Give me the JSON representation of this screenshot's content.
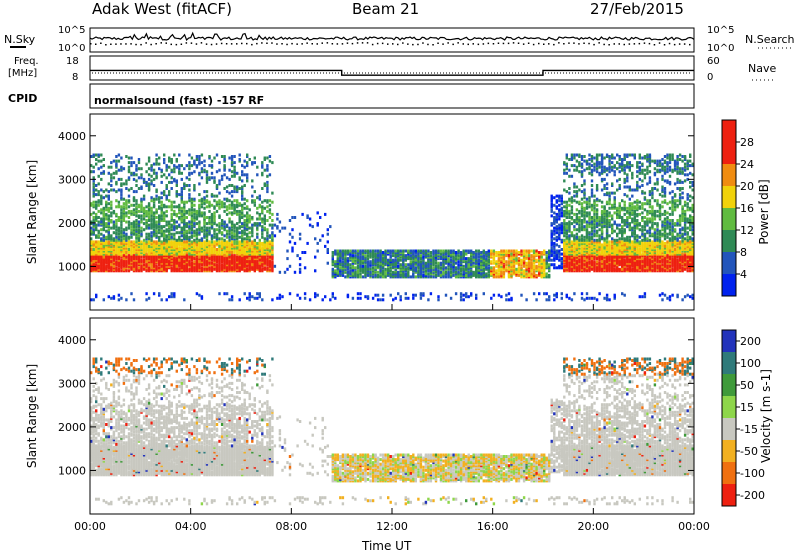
{
  "header": {
    "title": "Adak West (fitACF)",
    "beam": "Beam 21",
    "date": "27/Feb/2015"
  },
  "chart_data": [
    {
      "type": "line",
      "panel": "noise",
      "left_label": "N.Sky",
      "right_label": "N.Search",
      "left_ticks": [
        "10^5",
        "10^0"
      ],
      "right_ticks": [
        "10^5",
        "10^0"
      ]
    },
    {
      "type": "line",
      "panel": "frequency",
      "left_label_top": "Freq.",
      "left_label_unit": "[MHz]",
      "right_label": "Nave",
      "left_ticks": [
        18,
        8
      ],
      "right_ticks": [
        60,
        0
      ],
      "freq_segments_x": [
        [
          0,
          10,
          18,
          24
        ]
      ],
      "freq_segments_mhz": [
        [
          11.5,
          8.5,
          11.5
        ]
      ],
      "freq_mode_changes_hours": [
        10,
        18
      ]
    },
    {
      "type": "text",
      "panel": "cpid",
      "label": "CPID",
      "program": "normalsound (fast) -157 RF"
    },
    {
      "type": "heatmap",
      "panel": "power",
      "ylabel": "Slant Range [km]",
      "ylim": [
        0,
        4500
      ],
      "yticks": [
        1000,
        2000,
        3000,
        4000
      ],
      "xlim": [
        0,
        24
      ],
      "colorbar_label": "Power [dB]",
      "colorbar_ticks": [
        4,
        8,
        12,
        16,
        20,
        24,
        28
      ],
      "colorbar_colors": [
        "#0022ee",
        "#2255bb",
        "#2f8a55",
        "#60bb40",
        "#f1d20a",
        "#f08c10",
        "#ee2010",
        "#ee2010"
      ]
    },
    {
      "type": "heatmap",
      "panel": "velocity",
      "ylabel": "Slant Range [km]",
      "ylim": [
        0,
        4500
      ],
      "yticks": [
        1000,
        2000,
        3000,
        4000
      ],
      "xlim": [
        0,
        24
      ],
      "xticks": [
        "00:00",
        "04:00",
        "08:00",
        "12:00",
        "16:00",
        "20:00",
        "00:00"
      ],
      "xlabel": "Time UT",
      "colorbar_label": "Velocity [m s-1]",
      "colorbar_ticks": [
        "200",
        "100",
        "50",
        "15",
        "-15",
        "-50",
        "-100",
        "-200"
      ],
      "colorbar_colors": [
        "#2233bb",
        "#2f7a7a",
        "#3f9a3a",
        "#8ed64a",
        "#c8c8c0",
        "#f2b020",
        "#f07010",
        "#ee2010"
      ]
    }
  ]
}
